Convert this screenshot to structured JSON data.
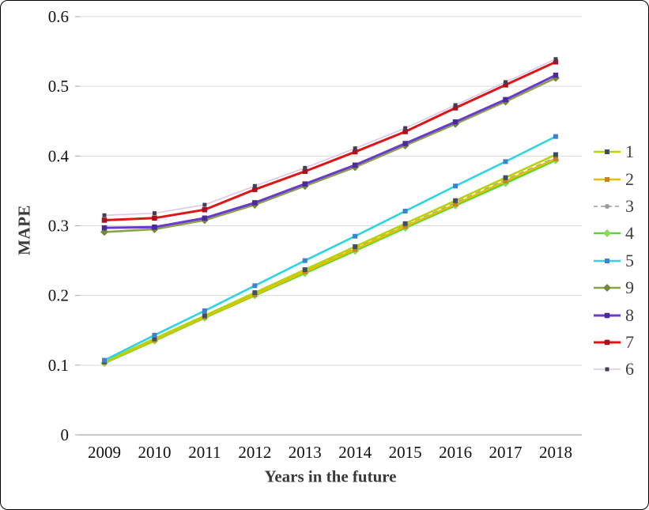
{
  "figure": {
    "background": "#ffffff",
    "border_color": "#000000"
  },
  "colors": {
    "gridline": "#d9d9d9",
    "axis_line": "#a6a6a6",
    "tick_label": "#111111",
    "axis_title": "#3a3a3a",
    "legend_label": "#3f3f3f"
  },
  "chart_data": {
    "type": "line",
    "title": "",
    "xlabel": "Years in the future",
    "ylabel": "MAPE",
    "x": [
      2009,
      2010,
      2011,
      2012,
      2013,
      2014,
      2015,
      2016,
      2017,
      2018
    ],
    "ylim": [
      0,
      0.6
    ],
    "yticks": [
      "0",
      "0.1",
      "0.2",
      "0.3",
      "0.4",
      "0.5",
      "0.6"
    ],
    "ytick_values": [
      0,
      0.1,
      0.2,
      0.3,
      0.4,
      0.5,
      0.6
    ],
    "grid": true,
    "legend_position": "right",
    "legend_order": [
      "1",
      "2",
      "3",
      "4",
      "5",
      "9",
      "8",
      "7",
      "6"
    ],
    "series": [
      {
        "name": "3",
        "color": "#a8a8a8",
        "dash": "7 5",
        "width": 1.8,
        "marker": "circle",
        "marker_color": "#999999",
        "marker_size": 6,
        "values": [
          0.104,
          0.137,
          0.17,
          0.202,
          0.235,
          0.268,
          0.3,
          0.333,
          0.366,
          0.398
        ]
      },
      {
        "name": "4",
        "color": "#55d633",
        "dash": null,
        "width": 2.6,
        "marker": "diamond",
        "marker_color": "#87db57",
        "marker_size": 7,
        "values": [
          0.103,
          0.135,
          0.168,
          0.2,
          0.232,
          0.264,
          0.297,
          0.329,
          0.361,
          0.394
        ]
      },
      {
        "name": "2",
        "color": "#e3c000",
        "dash": null,
        "width": 2.6,
        "marker": "square",
        "marker_color": "#c8812a",
        "marker_size": 6,
        "values": [
          0.104,
          0.136,
          0.169,
          0.201,
          0.234,
          0.266,
          0.299,
          0.331,
          0.364,
          0.396
        ]
      },
      {
        "name": "1",
        "color": "#b9d300",
        "dash": null,
        "width": 2.6,
        "marker": "square",
        "marker_color": "#3d4e66",
        "marker_size": 6,
        "values": [
          0.105,
          0.138,
          0.171,
          0.204,
          0.237,
          0.27,
          0.303,
          0.336,
          0.369,
          0.402
        ]
      },
      {
        "name": "5",
        "color": "#2ed3e6",
        "dash": null,
        "width": 2.6,
        "marker": "square",
        "marker_color": "#3f7fd4",
        "marker_size": 6,
        "values": [
          0.107,
          0.143,
          0.178,
          0.214,
          0.25,
          0.285,
          0.321,
          0.357,
          0.392,
          0.428
        ]
      },
      {
        "name": "9",
        "color": "#8aa24c",
        "dash": null,
        "width": 2.6,
        "marker": "diamond",
        "marker_color": "#74883c",
        "marker_size": 7,
        "values": [
          0.291,
          0.295,
          0.308,
          0.33,
          0.357,
          0.384,
          0.415,
          0.446,
          0.478,
          0.512
        ]
      },
      {
        "name": "8",
        "color": "#6b39cf",
        "dash": null,
        "width": 3,
        "marker": "square",
        "marker_color": "#4b2b9b",
        "marker_size": 6.5,
        "values": [
          0.297,
          0.298,
          0.311,
          0.333,
          0.36,
          0.387,
          0.418,
          0.449,
          0.481,
          0.516
        ]
      },
      {
        "name": "7",
        "color": "#e01414",
        "dash": null,
        "width": 3,
        "marker": "square",
        "marker_color": "#a81220",
        "marker_size": 6.5,
        "values": [
          0.308,
          0.311,
          0.323,
          0.352,
          0.378,
          0.406,
          0.435,
          0.469,
          0.502,
          0.535
        ]
      },
      {
        "name": "6",
        "color": "#dcc6e6",
        "dash": null,
        "width": 1.6,
        "marker": "square",
        "marker_color": "#3f3f55",
        "marker_size": 5,
        "values": [
          0.315,
          0.318,
          0.33,
          0.357,
          0.383,
          0.411,
          0.44,
          0.473,
          0.506,
          0.539
        ]
      }
    ]
  }
}
